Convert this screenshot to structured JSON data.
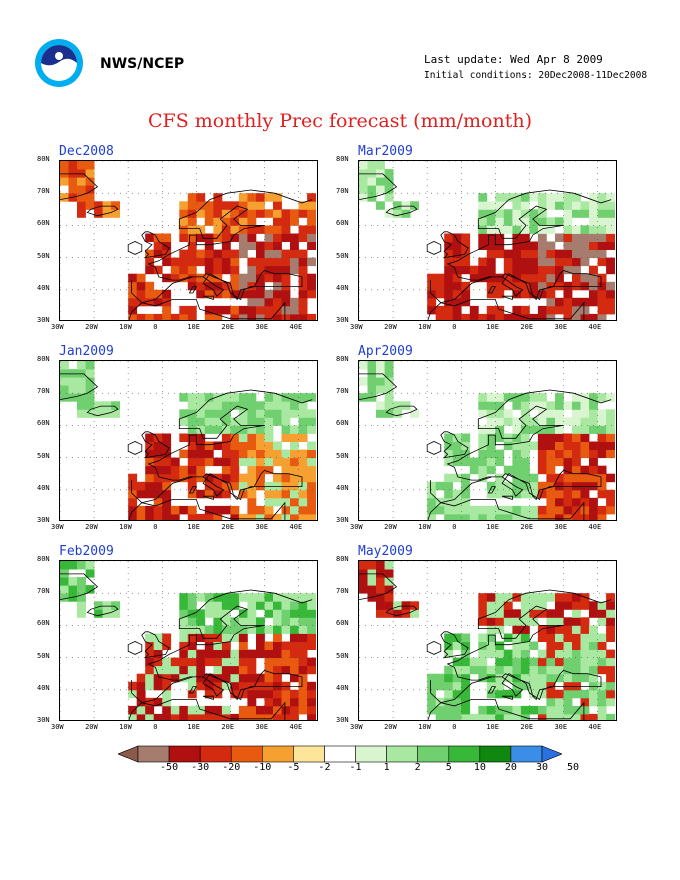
{
  "header": {
    "agency": "NWS/NCEP",
    "last_update": "Last update: Wed Apr 8 2009",
    "initial_conditions": "Initial conditions: 20Dec2008-11Dec2008"
  },
  "title": "CFS monthly Prec forecast (mm/month)",
  "lat_labels": [
    "80N",
    "70N",
    "60N",
    "50N",
    "40N",
    "30N"
  ],
  "lon_labels": [
    "30W",
    "20W",
    "10W",
    "0",
    "10E",
    "20E",
    "30E",
    "40E"
  ],
  "panels": [
    {
      "label": "Dec2008"
    },
    {
      "label": "Mar2009"
    },
    {
      "label": "Jan2009"
    },
    {
      "label": "Apr2009"
    },
    {
      "label": "Feb2009"
    },
    {
      "label": "May2009"
    }
  ],
  "colorbar": {
    "labels": [
      "-50",
      "-30",
      "-20",
      "-10",
      "-5",
      "-2",
      "-1",
      "1",
      "2",
      "5",
      "10",
      "20",
      "30",
      "50"
    ],
    "colors": [
      "#8c5a4a",
      "#a67c6e",
      "#b01010",
      "#d42a10",
      "#e85a10",
      "#f5a030",
      "#fde69a",
      "#ffffff",
      "#d8f5d0",
      "#a8e8a0",
      "#70d070",
      "#38b838",
      "#108810",
      "#3a8ee8",
      "#2a70e0"
    ]
  },
  "colors": {
    "title": "#e02020",
    "panel_label": "#1f3fd0"
  }
}
